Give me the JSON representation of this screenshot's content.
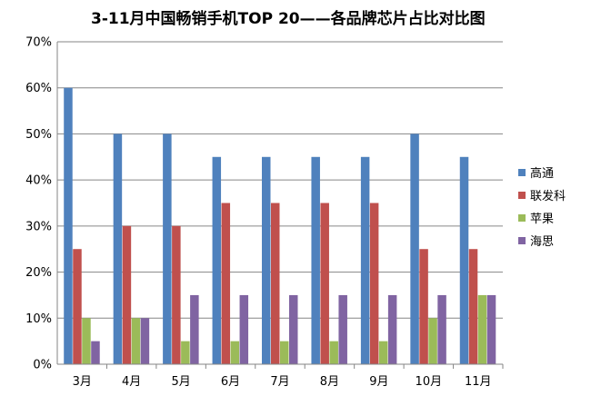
{
  "chart_data": {
    "type": "bar",
    "title": "3-11月中国畅销手机TOP 20——各品牌芯片占比对比图",
    "xlabel": "",
    "ylabel": "",
    "categories": [
      "3月",
      "4月",
      "5月",
      "6月",
      "7月",
      "8月",
      "9月",
      "10月",
      "11月"
    ],
    "ylim": [
      0,
      0.7
    ],
    "yticks": [
      0,
      0.1,
      0.2,
      0.3,
      0.4,
      0.5,
      0.6,
      0.7
    ],
    "ytick_labels": [
      "0%",
      "10%",
      "20%",
      "30%",
      "40%",
      "50%",
      "60%",
      "70%"
    ],
    "grid": true,
    "legend_position": "right",
    "series": [
      {
        "name": "高通",
        "color": "#4F81BD",
        "values": [
          0.6,
          0.5,
          0.5,
          0.45,
          0.45,
          0.45,
          0.45,
          0.5,
          0.45
        ]
      },
      {
        "name": "联发科",
        "color": "#C0504D",
        "values": [
          0.25,
          0.3,
          0.3,
          0.35,
          0.35,
          0.35,
          0.35,
          0.25,
          0.25
        ]
      },
      {
        "name": "苹果",
        "color": "#9BBB59",
        "values": [
          0.1,
          0.1,
          0.05,
          0.05,
          0.05,
          0.05,
          0.05,
          0.1,
          0.15
        ]
      },
      {
        "name": "海思",
        "color": "#8064A2",
        "values": [
          0.05,
          0.1,
          0.15,
          0.15,
          0.15,
          0.15,
          0.15,
          0.15,
          0.15
        ]
      }
    ]
  }
}
